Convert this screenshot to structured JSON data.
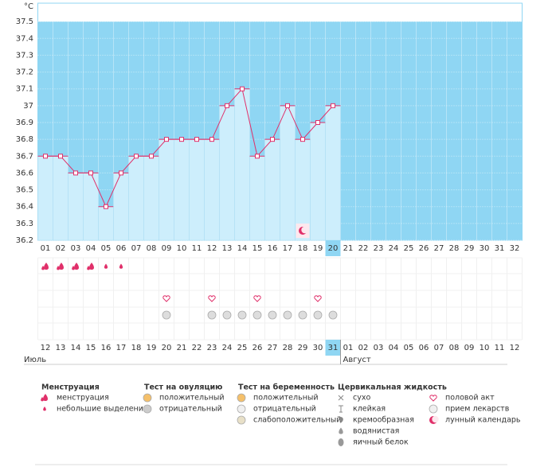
{
  "chart_data": {
    "type": "bar",
    "y_unit": "°C",
    "categories": [
      "01",
      "02",
      "03",
      "04",
      "05",
      "06",
      "07",
      "08",
      "09",
      "10",
      "11",
      "12",
      "13",
      "14",
      "15",
      "16",
      "17",
      "18",
      "19",
      "20",
      "21",
      "22",
      "23",
      "24",
      "25",
      "26",
      "27",
      "28",
      "29",
      "30",
      "31",
      "32"
    ],
    "values": [
      36.7,
      36.7,
      36.6,
      36.6,
      36.4,
      36.6,
      36.7,
      36.7,
      36.8,
      36.8,
      36.8,
      36.8,
      37.0,
      37.1,
      36.7,
      36.8,
      37.0,
      36.8,
      36.9,
      37.0,
      null,
      null,
      null,
      null,
      null,
      null,
      null,
      null,
      null,
      null,
      null,
      null
    ],
    "ylim": [
      36.2,
      37.6
    ],
    "yticks": [
      36.2,
      36.3,
      36.4,
      36.5,
      36.6,
      36.7,
      36.8,
      36.9,
      37,
      37.1,
      37.2,
      37.3,
      37.4,
      37.5
    ],
    "grid": true,
    "highlight_index": 19,
    "color": "#cdeefc",
    "line_color": "#e0306a",
    "background_color": "#8fd6f3"
  },
  "calendar": {
    "dates": [
      "12",
      "13",
      "14",
      "15",
      "16",
      "17",
      "18",
      "19",
      "20",
      "21",
      "22",
      "23",
      "24",
      "25",
      "26",
      "27",
      "28",
      "29",
      "30",
      "31",
      "01",
      "02",
      "03",
      "04",
      "05",
      "06",
      "07",
      "08",
      "09",
      "10",
      "11",
      "12"
    ],
    "weekend_indices": [
      1,
      2,
      8,
      9,
      15,
      16,
      22,
      23,
      29,
      30
    ],
    "months": [
      {
        "name": "Июль",
        "start": 0
      },
      {
        "name": "Август",
        "start": 20
      }
    ],
    "markers": {
      "menstruation_heavy": [
        0,
        1,
        2,
        3
      ],
      "menstruation_light": [
        4,
        5
      ],
      "intercourse": [
        8,
        11,
        14,
        18
      ],
      "ovulation_negative": [
        8,
        11,
        12,
        13,
        14,
        15,
        16,
        17,
        18,
        19
      ],
      "lunar": [
        17
      ]
    }
  },
  "legend": {
    "groups": [
      {
        "title": "Менструация",
        "items": [
          {
            "icon": "drop",
            "label": "менструация"
          },
          {
            "icon": "drop-small",
            "label": "небольшие выделения"
          }
        ]
      },
      {
        "title": "Тест на овуляцию",
        "items": [
          {
            "icon": "test-pos",
            "label": "положительный"
          },
          {
            "icon": "test-neg",
            "label": "отрицательный"
          }
        ]
      },
      {
        "title": "Тест на беременность",
        "items": [
          {
            "icon": "test-pos",
            "label": "положительный"
          },
          {
            "icon": "test-empty",
            "label": "отрицательный"
          },
          {
            "icon": "test-weak",
            "label": "слабоположительный"
          }
        ]
      },
      {
        "title": "Цервикальная жидкость",
        "items": [
          {
            "icon": "cross",
            "label": "сухо"
          },
          {
            "icon": "tee",
            "label": "клейкая"
          },
          {
            "icon": "blob",
            "label": "кремообразная"
          },
          {
            "icon": "drop-gray",
            "label": "водянистая"
          },
          {
            "icon": "egg",
            "label": "яичный белок"
          }
        ]
      },
      {
        "items": [
          {
            "icon": "heart",
            "label": "половой акт"
          },
          {
            "icon": "test-empty",
            "label": "прием лекарств"
          },
          {
            "icon": "moon",
            "label": "лунный календарь"
          }
        ]
      }
    ]
  }
}
